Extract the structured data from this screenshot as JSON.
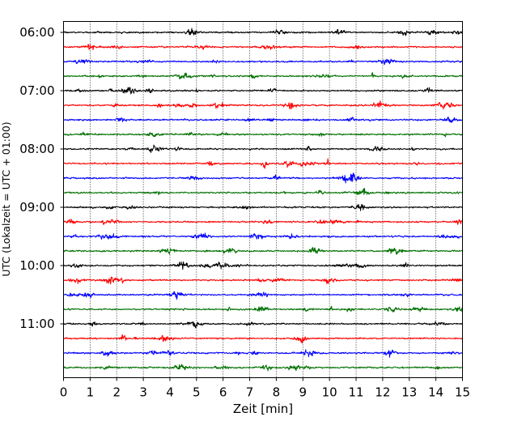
{
  "chart_data": {
    "type": "line",
    "title": "",
    "xlabel": "Zeit  [min]",
    "ylabel": "UTC (Lokalzeit = UTC + 01:00)",
    "xlim": [
      0,
      15
    ],
    "x_ticks": [
      0,
      1,
      2,
      3,
      4,
      5,
      6,
      7,
      8,
      9,
      10,
      11,
      12,
      13,
      14,
      15
    ],
    "grid": "vertical dotted",
    "legend": "none",
    "start_time": "06:00",
    "trace_minutes": 15,
    "trace_count": 24,
    "hour_labels": [
      "06:00",
      "07:00",
      "08:00",
      "09:00",
      "10:00",
      "11:00"
    ],
    "trace_colors": [
      "#000000",
      "#ff0000",
      "#0000ff",
      "#007000"
    ],
    "grid_color": "#000000",
    "axis_color": "#000000"
  }
}
